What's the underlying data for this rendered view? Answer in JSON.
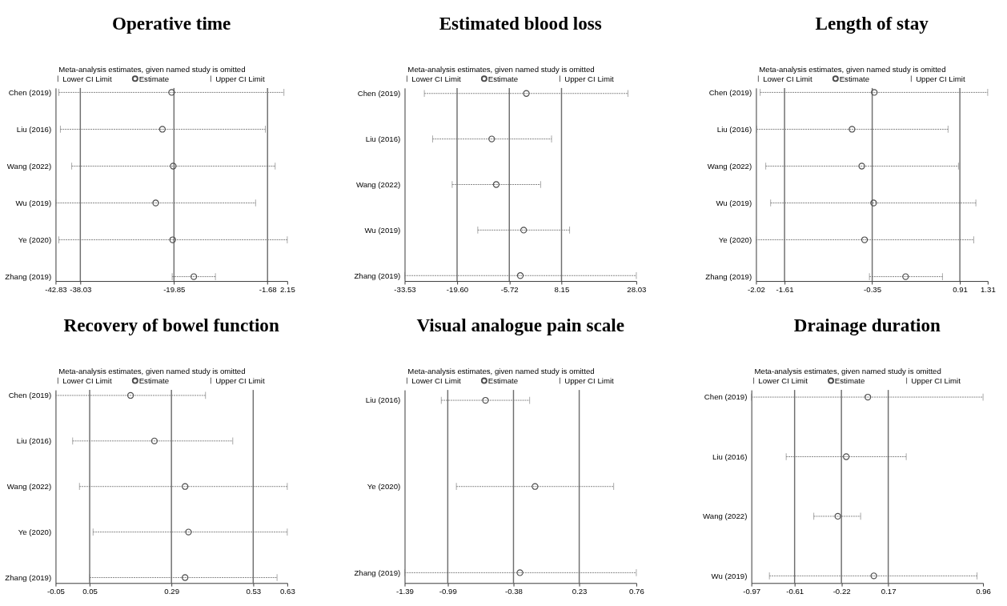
{
  "chart_data": [
    {
      "type": "scatter",
      "orientation": "horizontal",
      "title": "Operative time",
      "subtitle": "Meta-analysis estimates, given named study is omitted",
      "categories": [
        "Chen (2019)",
        "Liu (2016)",
        "Wang (2022)",
        "Wu (2019)",
        "Ye (2020)",
        "Zhang (2019)"
      ],
      "series": [
        {
          "name": "Estimate",
          "color": "#4d4d4d",
          "values": [
            -20.3,
            -22.1,
            -20.0,
            -23.4,
            -20.1,
            -16.0
          ],
          "errors": [
            [
              -42.2,
              1.5
            ],
            [
              -41.9,
              -2.1
            ],
            [
              -39.7,
              -0.2
            ],
            [
              -42.8,
              -4.0
            ],
            [
              -42.2,
              2.15
            ],
            [
              -20.2,
              -11.8
            ]
          ]
        }
      ],
      "xlim": [
        -42.83,
        2.15
      ],
      "xticks": [
        -42.83,
        -38.03,
        -19.85,
        -1.68,
        2.15
      ],
      "ref_lines": [
        {
          "axis": "x",
          "value": -38.03,
          "color": "#6e6e6e"
        },
        {
          "axis": "x",
          "value": -19.85,
          "color": "#6e6e6e"
        },
        {
          "axis": "x",
          "value": -1.68,
          "color": "#6e6e6e"
        }
      ],
      "annotations": [
        "Lower CI Limit",
        "Upper CI Limit"
      ],
      "marker": "circle",
      "legend": "top",
      "grid": false
    },
    {
      "type": "scatter",
      "orientation": "horizontal",
      "title": "Estimated blood loss",
      "subtitle": "Meta-analysis estimates, given named study is omitted",
      "categories": [
        "Chen (2019)",
        "Liu (2016)",
        "Wang (2022)",
        "Wu (2019)",
        "Zhang (2019)"
      ],
      "series": [
        {
          "name": "Estimate",
          "color": "#4d4d4d",
          "values": [
            -1.2,
            -10.4,
            -9.2,
            -1.9,
            -2.8
          ],
          "errors": [
            [
              -28.3,
              25.8
            ],
            [
              -26.1,
              5.5
            ],
            [
              -20.9,
              2.6
            ],
            [
              -14.1,
              10.3
            ],
            [
              -33.53,
              28.03
            ]
          ]
        }
      ],
      "xlim": [
        -33.53,
        28.03
      ],
      "xticks": [
        -33.53,
        {
          "value": -19.6,
          "label": "-19.60"
        },
        -5.72,
        8.15,
        28.03
      ],
      "ref_lines": [
        {
          "axis": "x",
          "value": -19.6,
          "color": "#6e6e6e"
        },
        {
          "axis": "x",
          "value": -5.72,
          "color": "#6e6e6e"
        },
        {
          "axis": "x",
          "value": 8.15,
          "color": "#6e6e6e"
        }
      ],
      "annotations": [
        "Lower CI Limit",
        "Upper CI Limit"
      ],
      "marker": "circle",
      "legend": "top",
      "grid": false
    },
    {
      "type": "scatter",
      "orientation": "horizontal",
      "title": "Length of stay",
      "subtitle": "Meta-analysis estimates, given named study is omitted",
      "categories": [
        "Chen (2019)",
        "Liu (2016)",
        "Wang (2022)",
        "Wu (2019)",
        "Ye (2020)",
        "Zhang (2019)"
      ],
      "series": [
        {
          "name": "Estimate",
          "color": "#4d4d4d",
          "values": [
            -0.32,
            -0.64,
            -0.5,
            -0.33,
            -0.46,
            0.13
          ],
          "errors": [
            [
              -1.96,
              1.31
            ],
            [
              -2.01,
              0.74
            ],
            [
              -1.88,
              0.89
            ],
            [
              -1.81,
              1.14
            ],
            [
              -2.02,
              1.11
            ],
            [
              -0.39,
              0.66
            ]
          ]
        }
      ],
      "xlim": [
        -2.02,
        1.31
      ],
      "xticks": [
        -2.02,
        -1.61,
        -0.35,
        0.91,
        1.31
      ],
      "ref_lines": [
        {
          "axis": "x",
          "value": -1.61,
          "color": "#6e6e6e"
        },
        {
          "axis": "x",
          "value": -0.35,
          "color": "#6e6e6e"
        },
        {
          "axis": "x",
          "value": 0.91,
          "color": "#6e6e6e"
        }
      ],
      "annotations": [
        "Lower CI Limit",
        "Upper CI Limit"
      ],
      "marker": "circle",
      "legend": "top",
      "grid": false
    },
    {
      "type": "scatter",
      "orientation": "horizontal",
      "title": "Recovery of bowel function",
      "subtitle": "Meta-analysis estimates, given named study is omitted",
      "categories": [
        "Chen (2019)",
        "Liu (2016)",
        "Wang (2022)",
        "Ye (2020)",
        "Zhang (2019)"
      ],
      "series": [
        {
          "name": "Estimate",
          "color": "#4d4d4d",
          "values": [
            0.17,
            0.24,
            0.33,
            0.34,
            0.33
          ],
          "errors": [
            [
              -0.05,
              0.39
            ],
            [
              0.0,
              0.47
            ],
            [
              0.02,
              0.63
            ],
            [
              0.06,
              0.63
            ],
            [
              0.05,
              0.6
            ]
          ]
        }
      ],
      "xlim": [
        -0.05,
        0.63
      ],
      "xticks": [
        -0.05,
        0.05,
        0.29,
        0.53,
        0.63
      ],
      "ref_lines": [
        {
          "axis": "x",
          "value": 0.05,
          "color": "#6e6e6e"
        },
        {
          "axis": "x",
          "value": 0.29,
          "color": "#6e6e6e"
        },
        {
          "axis": "x",
          "value": 0.53,
          "color": "#6e6e6e"
        }
      ],
      "annotations": [
        "Lower CI Limit",
        "Upper CI Limit"
      ],
      "marker": "circle",
      "legend": "top",
      "grid": false
    },
    {
      "type": "scatter",
      "orientation": "horizontal",
      "title": "Visual analogue pain scale",
      "subtitle": "Meta-analysis estimates, given named study is omitted",
      "categories": [
        "Liu (2016)",
        "Ye (2020)",
        "Zhang (2019)"
      ],
      "series": [
        {
          "name": "Estimate",
          "color": "#4d4d4d",
          "values": [
            -0.64,
            -0.18,
            -0.32
          ],
          "errors": [
            [
              -1.05,
              -0.23
            ],
            [
              -0.91,
              0.55
            ],
            [
              -1.39,
              0.76
            ]
          ]
        }
      ],
      "xlim": [
        -1.39,
        0.76
      ],
      "xticks": [
        -1.39,
        -0.99,
        -0.38,
        0.23,
        0.76
      ],
      "ref_lines": [
        {
          "axis": "x",
          "value": -0.99,
          "color": "#6e6e6e"
        },
        {
          "axis": "x",
          "value": -0.38,
          "color": "#6e6e6e"
        },
        {
          "axis": "x",
          "value": 0.23,
          "color": "#6e6e6e"
        }
      ],
      "annotations": [
        "Lower CI Limit",
        "Upper CI Limit"
      ],
      "marker": "circle",
      "legend": "top",
      "grid": false
    },
    {
      "type": "scatter",
      "orientation": "horizontal",
      "title": "Drainage duration",
      "subtitle": "Meta-analysis estimates, given named study is omitted",
      "categories": [
        "Chen (2019)",
        "Liu (2016)",
        "Wang (2022)",
        "Wu (2019)"
      ],
      "series": [
        {
          "name": "Estimate",
          "color": "#4d4d4d",
          "values": [
            0.0,
            -0.18,
            -0.25,
            0.05
          ],
          "errors": [
            [
              -0.97,
              0.96
            ],
            [
              -0.68,
              0.32
            ],
            [
              -0.45,
              -0.06
            ],
            [
              -0.82,
              0.91
            ]
          ]
        }
      ],
      "xlim": [
        -0.97,
        0.96
      ],
      "xticks": [
        -0.97,
        -0.61,
        -0.22,
        0.17,
        0.96
      ],
      "ref_lines": [
        {
          "axis": "x",
          "value": -0.61,
          "color": "#6e6e6e"
        },
        {
          "axis": "x",
          "value": -0.22,
          "color": "#6e6e6e"
        },
        {
          "axis": "x",
          "value": 0.17,
          "color": "#6e6e6e"
        }
      ],
      "annotations": [
        "Lower CI Limit",
        "Upper CI Limit"
      ],
      "marker": "circle",
      "legend": "top",
      "grid": false
    }
  ]
}
